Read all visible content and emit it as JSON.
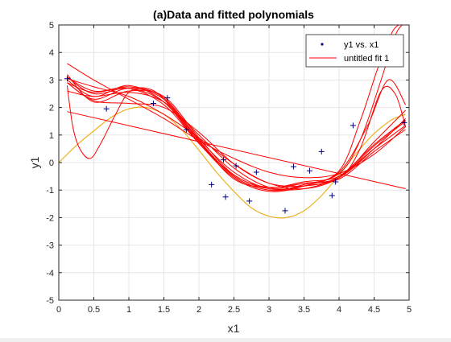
{
  "chart_data": {
    "type": "scatter",
    "title": "(a)Data and fitted polynomials",
    "xlabel": "x1",
    "ylabel": "y1",
    "xlim": [
      0,
      5
    ],
    "ylim": [
      -5,
      5
    ],
    "xticks": [
      0,
      0.5,
      1,
      1.5,
      2,
      2.5,
      3,
      3.5,
      4,
      4.5,
      5
    ],
    "xtick_labels": [
      "0",
      "0.5",
      "1",
      "1.5",
      "2",
      "2.5",
      "3",
      "3.5",
      "4",
      "4.5",
      "5"
    ],
    "yticks": [
      -5,
      -4,
      -3,
      -2,
      -1,
      0,
      1,
      2,
      3,
      4,
      5
    ],
    "ytick_labels": [
      "-5",
      "-4",
      "-3",
      "-2",
      "-1",
      "0",
      "1",
      "2",
      "3",
      "4",
      "5"
    ],
    "grid": true,
    "legend_position": "top-right",
    "legend": [
      {
        "label": "y1 vs. x1",
        "marker": "dot",
        "color": "#00007f"
      },
      {
        "label": "untitled fit 1",
        "marker": "line",
        "color": "#ff0000"
      }
    ],
    "colors": {
      "data_marker": "#00007f",
      "fit": "#ff0000",
      "true_curve": "#edb120",
      "grid": "#e6e6e6",
      "axes": "#262626"
    },
    "scatter": {
      "name": "y1 vs. x1",
      "x": [
        0.12,
        0.68,
        1.35,
        1.55,
        1.82,
        2.18,
        2.35,
        2.38,
        2.53,
        2.72,
        2.82,
        3.23,
        3.35,
        3.58,
        3.75,
        3.9,
        3.95,
        4.2,
        4.93
      ],
      "y": [
        3.05,
        1.95,
        2.15,
        2.35,
        1.2,
        -0.8,
        0.1,
        -1.25,
        -0.12,
        -1.4,
        -0.35,
        -1.75,
        -0.15,
        -0.3,
        0.4,
        -1.2,
        -0.7,
        1.35,
        1.45
      ]
    },
    "true_curve": {
      "x": [
        0,
        0.25,
        0.5,
        0.75,
        1.0,
        1.25,
        1.5,
        1.75,
        2.0,
        2.25,
        2.5,
        2.75,
        3.0,
        3.25,
        3.5,
        3.75,
        4.0,
        4.25,
        4.5,
        4.75,
        4.95
      ],
      "y": [
        0.0,
        0.62,
        1.15,
        1.65,
        1.95,
        2.0,
        1.75,
        1.2,
        0.45,
        -0.35,
        -1.05,
        -1.65,
        -1.95,
        -2.0,
        -1.75,
        -1.2,
        -0.45,
        0.35,
        1.05,
        1.55,
        1.75
      ]
    },
    "fit_curves": [
      {
        "x": [
          0.12,
          4.95
        ],
        "y": [
          1.85,
          -0.95
        ]
      },
      {
        "x": [
          0.12,
          0.5,
          1.0,
          1.5,
          2.0,
          2.5,
          3.0,
          3.5,
          4.0,
          4.5,
          4.95
        ],
        "y": [
          3.6,
          3.0,
          2.3,
          1.6,
          0.8,
          0.15,
          -0.35,
          -0.55,
          -0.4,
          0.3,
          1.3
        ]
      },
      {
        "x": [
          0.12,
          0.5,
          1.0,
          1.5,
          2.0,
          2.5,
          3.0,
          3.5,
          4.0,
          4.5,
          4.95
        ],
        "y": [
          3.05,
          2.75,
          2.4,
          1.75,
          0.9,
          -0.05,
          -0.75,
          -0.95,
          -0.55,
          0.6,
          1.5
        ]
      },
      {
        "x": [
          0.12,
          0.5,
          1.0,
          1.5,
          2.0,
          2.5,
          3.0,
          3.5,
          4.0,
          4.5,
          4.95
        ],
        "y": [
          2.9,
          2.25,
          2.15,
          2.0,
          1.1,
          -0.05,
          -0.75,
          -0.85,
          -0.55,
          0.5,
          1.6
        ]
      },
      {
        "x": [
          0.12,
          0.5,
          1.0,
          1.5,
          2.0,
          2.5,
          3.0,
          3.5,
          4.0,
          4.5,
          4.95
        ],
        "y": [
          2.6,
          2.4,
          2.55,
          2.2,
          1.0,
          -0.2,
          -0.9,
          -0.95,
          -0.5,
          0.65,
          1.55
        ]
      },
      {
        "x": [
          0.12,
          0.5,
          1.0,
          1.5,
          2.0,
          2.5,
          3.0,
          3.5,
          4.0,
          4.5,
          4.95
        ],
        "y": [
          2.9,
          2.55,
          2.75,
          2.35,
          0.85,
          -0.35,
          -0.95,
          -0.85,
          -0.55,
          0.75,
          1.9
        ]
      },
      {
        "x": [
          0.12,
          0.5,
          1.0,
          1.5,
          2.0,
          2.5,
          3.0,
          3.5,
          4.0,
          4.5,
          4.95
        ],
        "y": [
          3.1,
          2.6,
          2.7,
          2.1,
          0.7,
          -0.45,
          -0.95,
          -0.75,
          -0.6,
          0.4,
          1.2
        ]
      },
      {
        "x": [
          0.12,
          0.5,
          1.0,
          1.5,
          2.0,
          2.5,
          3.0,
          3.5,
          4.0,
          4.5,
          4.95
        ],
        "y": [
          3.2,
          2.2,
          2.6,
          2.4,
          0.9,
          -0.45,
          -0.9,
          -0.7,
          -0.5,
          0.5,
          1.35
        ]
      },
      {
        "x": [
          0.12,
          0.2,
          0.3,
          0.45,
          0.6,
          0.8,
          1.0,
          1.25,
          1.5,
          2.0,
          2.5,
          3.0,
          3.5,
          4.0,
          4.3,
          4.6,
          4.8,
          4.95
        ],
        "y": [
          2.8,
          1.3,
          0.5,
          0.15,
          0.7,
          1.7,
          2.55,
          2.7,
          2.3,
          0.8,
          -0.6,
          -0.9,
          -0.75,
          -0.55,
          0.5,
          2.6,
          2.5,
          1.3
        ]
      },
      {
        "x": [
          0.12,
          0.5,
          1.0,
          1.5,
          2.0,
          2.5,
          3.0,
          3.5,
          4.0,
          4.4,
          4.7,
          4.95
        ],
        "y": [
          3.0,
          2.4,
          2.8,
          2.2,
          0.7,
          -0.55,
          -1.05,
          -0.85,
          -0.35,
          1.3,
          3.0,
          2.1
        ]
      },
      {
        "x": [
          0.12,
          0.5,
          1.0,
          1.5,
          2.0,
          2.5,
          3.0,
          3.5,
          4.0,
          4.3,
          4.6,
          4.8,
          4.9
        ],
        "y": [
          2.9,
          2.3,
          2.7,
          2.3,
          0.8,
          -0.5,
          -1.0,
          -0.8,
          -0.4,
          0.8,
          3.0,
          4.6,
          5.0
        ]
      },
      {
        "x": [
          0.12,
          0.5,
          1.0,
          1.5,
          2.0,
          2.5,
          3.0,
          3.5,
          4.0,
          4.3,
          4.55,
          4.75,
          4.85
        ],
        "y": [
          3.1,
          2.5,
          2.7,
          2.2,
          0.75,
          -0.5,
          -1.0,
          -0.85,
          -0.3,
          1.5,
          3.4,
          4.7,
          5.0
        ]
      }
    ]
  }
}
